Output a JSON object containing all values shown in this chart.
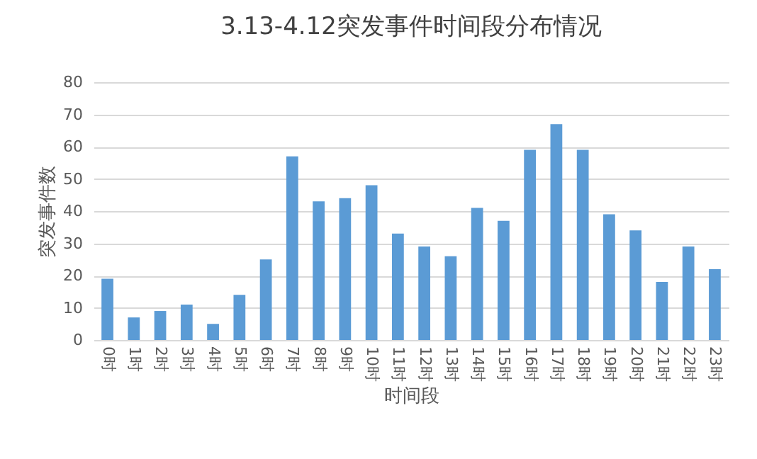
{
  "chart_data": {
    "type": "bar",
    "title": "3.13-4.12突发事件时间段分布情况",
    "xlabel": "时间段",
    "ylabel": "突发事件数",
    "categories": [
      "0时",
      "1时",
      "2时",
      "3时",
      "4时",
      "5时",
      "6时",
      "7时",
      "8时",
      "9时",
      "10时",
      "11时",
      "12时",
      "13时",
      "14时",
      "15时",
      "16时",
      "17时",
      "18时",
      "19时",
      "20时",
      "21时",
      "22时",
      "23时"
    ],
    "values": [
      19,
      7,
      9,
      11,
      5,
      14,
      25,
      57,
      43,
      44,
      48,
      33,
      29,
      26,
      41,
      37,
      59,
      67,
      59,
      39,
      34,
      18,
      29,
      22
    ],
    "color": "#5b9bd5",
    "ylim": [
      0,
      80
    ],
    "yticks": [
      0,
      10,
      20,
      30,
      40,
      50,
      60,
      70,
      80
    ],
    "grid": "y"
  }
}
